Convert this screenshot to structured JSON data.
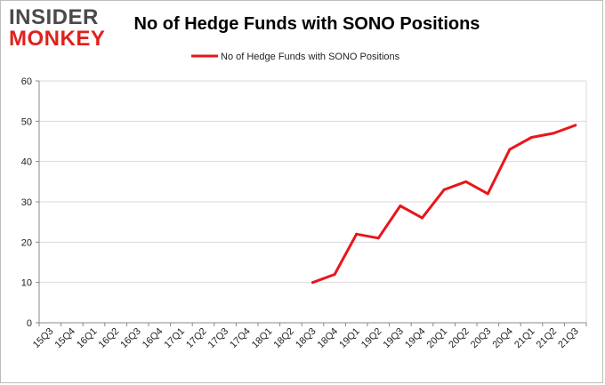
{
  "logo": {
    "line1": "INSIDER",
    "line2": "MONKEY"
  },
  "colors": {
    "series": "#e8161c",
    "grid": "#d9d9d9",
    "axis": "#888888"
  },
  "chart_data": {
    "type": "line",
    "title": "No of Hedge Funds with SONO Positions",
    "xlabel": "",
    "ylabel": "",
    "ylim": [
      0,
      60
    ],
    "yticks": [
      0,
      10,
      20,
      30,
      40,
      50,
      60
    ],
    "grid": true,
    "legend_position": "top-center",
    "categories": [
      "15Q3",
      "15Q4",
      "16Q1",
      "16Q2",
      "16Q3",
      "16Q4",
      "17Q1",
      "17Q2",
      "17Q3",
      "17Q4",
      "18Q1",
      "18Q2",
      "18Q3",
      "18Q4",
      "19Q1",
      "19Q2",
      "19Q3",
      "19Q4",
      "20Q1",
      "20Q2",
      "20Q3",
      "20Q4",
      "21Q1",
      "21Q2",
      "21Q3"
    ],
    "series": [
      {
        "name": "No of Hedge Funds with SONO Positions",
        "values": [
          null,
          null,
          null,
          null,
          null,
          null,
          null,
          null,
          null,
          null,
          null,
          null,
          10,
          12,
          22,
          21,
          29,
          26,
          33,
          35,
          32,
          43,
          46,
          47,
          49
        ]
      }
    ]
  }
}
